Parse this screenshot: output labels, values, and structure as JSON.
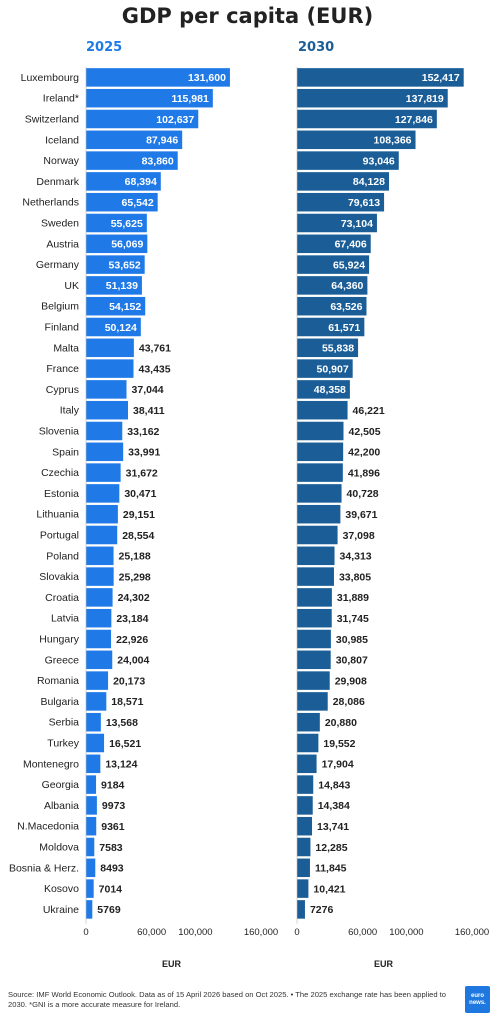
{
  "title": "GDP per capita (EUR)",
  "footer": "Source: IMF World Economic Outlook. Data as of 15 April 2026 based on Oct 2025. • The 2025 exchange rate has been applied to 2030. *GNI is a more accurate measure for Ireland.",
  "logo_text": "euro news.",
  "colors": {
    "y2025": "#1f7ae8",
    "y2030": "#1b5e97",
    "inside_label": "#ffffff",
    "outside_label": "#222222"
  },
  "chart_data": {
    "type": "bar",
    "orientation": "horizontal",
    "title": "GDP per capita (EUR)",
    "categories": [
      "Luxembourg",
      "Ireland*",
      "Switzerland",
      "Iceland",
      "Norway",
      "Denmark",
      "Netherlands",
      "Sweden",
      "Austria",
      "Germany",
      "UK",
      "Belgium",
      "Finland",
      "Malta",
      "France",
      "Cyprus",
      "Italy",
      "Slovenia",
      "Spain",
      "Czechia",
      "Estonia",
      "Lithuania",
      "Portugal",
      "Poland",
      "Slovakia",
      "Croatia",
      "Latvia",
      "Hungary",
      "Greece",
      "Romania",
      "Bulgaria",
      "Serbia",
      "Turkey",
      "Montenegro",
      "Georgia",
      "Albania",
      "N.Macedonia",
      "Moldova",
      "Bosnia & Herz.",
      "Kosovo",
      "Ukraine"
    ],
    "series": [
      {
        "name": "2025",
        "values": [
          131600,
          115981,
          102637,
          87946,
          83860,
          68394,
          65542,
          55625,
          56069,
          53652,
          51139,
          54152,
          50124,
          43761,
          43435,
          37044,
          38411,
          33162,
          33991,
          31672,
          30471,
          29151,
          28554,
          25188,
          25298,
          24302,
          23184,
          22926,
          24004,
          20173,
          18571,
          13568,
          16521,
          13124,
          9184,
          9973,
          9361,
          7583,
          8493,
          7014,
          5769
        ],
        "labels": [
          "131,600",
          "115,981",
          "102,637",
          "87,946",
          "83,860",
          "68,394",
          "65,542",
          "55,625",
          "56,069",
          "53,652",
          "51,139",
          "54,152",
          "50,124",
          "43,761",
          "43,435",
          "37,044",
          "38,411",
          "33,162",
          "33,991",
          "31,672",
          "30,471",
          "29,151",
          "28,554",
          "25,188",
          "25,298",
          "24,302",
          "23,184",
          "22,926",
          "24,004",
          "20,173",
          "18,571",
          "13,568",
          "16,521",
          "13,124",
          "9184",
          "9973",
          "9361",
          "7583",
          "8493",
          "7014",
          "5769"
        ]
      },
      {
        "name": "2030",
        "values": [
          152417,
          137819,
          127846,
          108366,
          93046,
          84128,
          79613,
          73104,
          67406,
          65924,
          64360,
          63526,
          61571,
          55838,
          50907,
          48358,
          46221,
          42505,
          42200,
          41896,
          40728,
          39671,
          37098,
          34313,
          33805,
          31889,
          31745,
          30985,
          30807,
          29908,
          28086,
          20880,
          19552,
          17904,
          14843,
          14384,
          13741,
          12285,
          11845,
          10421,
          7276
        ],
        "labels": [
          "152,417",
          "137,819",
          "127,846",
          "108,366",
          "93,046",
          "84,128",
          "79,613",
          "73,104",
          "67,406",
          "65,924",
          "64,360",
          "63,526",
          "61,571",
          "55,838",
          "50,907",
          "48,358",
          "46,221",
          "42,505",
          "42,200",
          "41,896",
          "40,728",
          "39,671",
          "37,098",
          "34,313",
          "33,805",
          "31,889",
          "31,745",
          "30,985",
          "30,807",
          "29,908",
          "28,086",
          "20,880",
          "19,552",
          "17,904",
          "14,843",
          "14,384",
          "13,741",
          "12,285",
          "11,845",
          "10,421",
          "7276"
        ]
      }
    ],
    "xlim": [
      0,
      160000
    ],
    "xticks": [
      "0",
      "60,000",
      "100,000",
      "160,000"
    ],
    "xtick_values": [
      0,
      60000,
      100000,
      160000
    ],
    "xlabel": "EUR",
    "grid": false,
    "legend": "none"
  }
}
